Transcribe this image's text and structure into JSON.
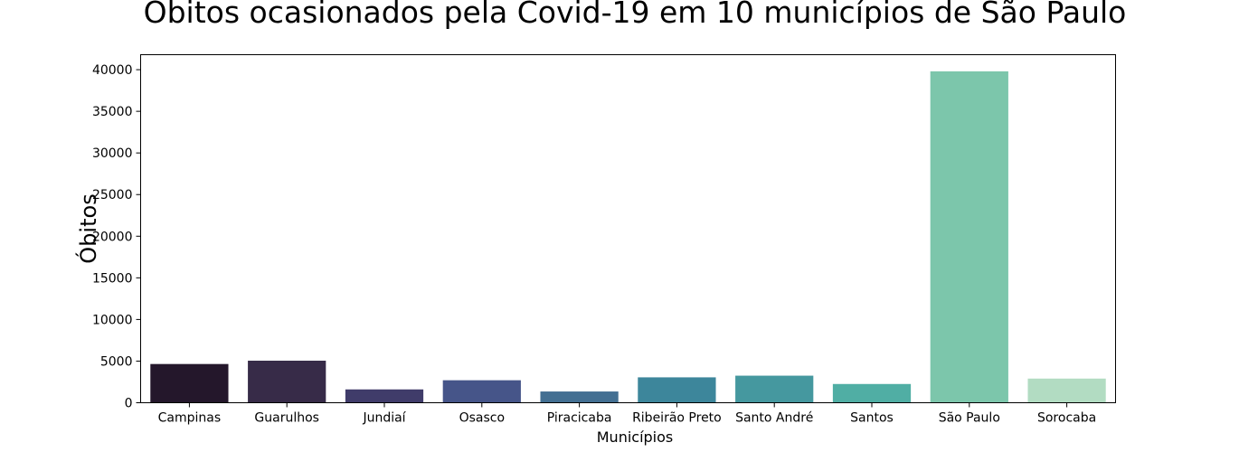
{
  "chart_data": {
    "type": "bar",
    "title": "Óbitos ocasionados pela Covid-19 em 10 municípios de São Paulo",
    "xlabel": "Municípios",
    "ylabel": "Óbitos",
    "categories": [
      "Campinas",
      "Guarulhos",
      "Jundiaí",
      "Osasco",
      "Piracicaba",
      "Ribeirão Preto",
      "Santo André",
      "Santos",
      "São Paulo",
      "Sorocaba"
    ],
    "values": [
      4650,
      5050,
      1600,
      2700,
      1350,
      3050,
      3250,
      2250,
      39800,
      2900
    ],
    "colors": [
      "#24172b",
      "#372b48",
      "#403c6a",
      "#465589",
      "#436f92",
      "#3d869b",
      "#45989f",
      "#50aea4",
      "#7cc6ab",
      "#b2dcc2"
    ],
    "ylim": [
      0,
      41800
    ],
    "yticks": [
      0,
      5000,
      10000,
      15000,
      20000,
      25000,
      30000,
      35000,
      40000
    ],
    "grid": false,
    "legend": "none"
  }
}
